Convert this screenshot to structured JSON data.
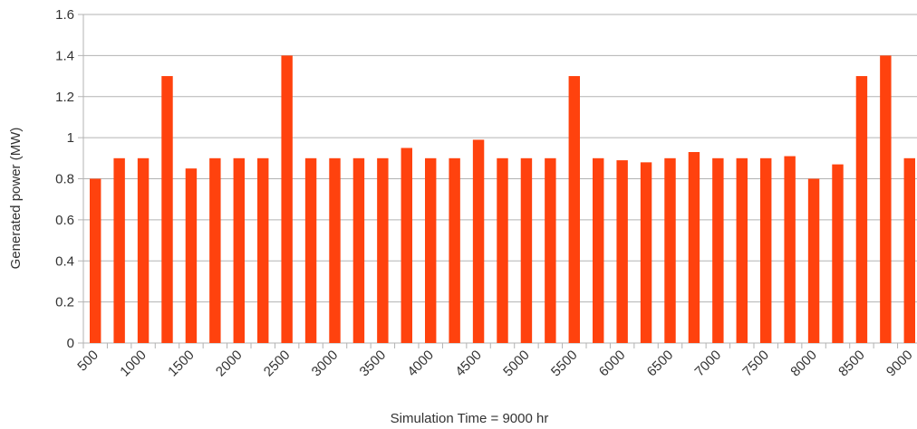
{
  "chart_data": {
    "type": "bar",
    "categories": [
      "500",
      "",
      "1000",
      "",
      "1500",
      "",
      "2000",
      "",
      "2500",
      "",
      "3000",
      "",
      "3500",
      "",
      "4000",
      "",
      "4500",
      "",
      "5000",
      "",
      "5500",
      "",
      "6000",
      "",
      "6500",
      "",
      "7000",
      "",
      "7500",
      "",
      "8000",
      "",
      "8500",
      "",
      "9000"
    ],
    "values": [
      0.8,
      0.9,
      0.9,
      1.3,
      0.85,
      0.9,
      0.9,
      0.9,
      1.4,
      0.9,
      0.9,
      0.9,
      0.9,
      0.95,
      0.9,
      0.9,
      0.99,
      0.9,
      0.9,
      0.9,
      1.3,
      0.9,
      0.89,
      0.88,
      0.9,
      0.93,
      0.9,
      0.9,
      0.9,
      0.91,
      0.8,
      0.87,
      1.3,
      1.4,
      0.9
    ],
    "yticks": [
      "0",
      "0.2",
      "0.4",
      "0.6",
      "0.8",
      "1",
      "1.2",
      "1.4",
      "1.6"
    ],
    "ylim": [
      0,
      1.6
    ],
    "xlabel": "Simulation Time = 9000 hr",
    "ylabel": "Generated power (MW)",
    "grid": true,
    "legend": "none",
    "bar_color": "#ff420e"
  }
}
